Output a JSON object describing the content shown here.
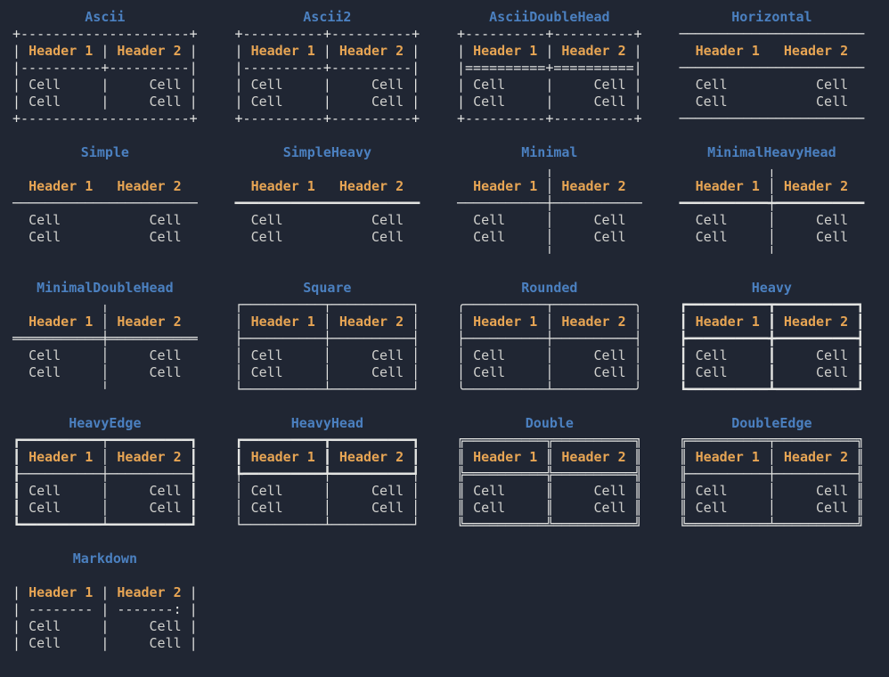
{
  "colors": {
    "background": "#202633",
    "title": "#4b80c0",
    "header": "#e7a554",
    "cell": "#d0d0cd",
    "border": "#e3e4e2"
  },
  "highlight": {
    "headers": [
      "Header 1",
      "Header 2"
    ],
    "cells": [
      "Cell"
    ]
  },
  "tables": [
    {
      "title": "Ascii",
      "lines": [
        "+---------------------+",
        "| Header 1 | Header 2 |",
        "|----------+----------|",
        "| Cell     |     Cell |",
        "| Cell     |     Cell |",
        "+---------------------+"
      ]
    },
    {
      "title": "Ascii2",
      "lines": [
        "+----------+----------+",
        "| Header 1 | Header 2 |",
        "|----------+----------|",
        "| Cell     |     Cell |",
        "| Cell     |     Cell |",
        "+----------+----------+"
      ]
    },
    {
      "title": "AsciiDoubleHead",
      "lines": [
        "+----------+----------+",
        "| Header 1 | Header 2 |",
        "|==========+==========|",
        "| Cell     |     Cell |",
        "| Cell     |     Cell |",
        "+----------+----------+"
      ]
    },
    {
      "title": "Horizontal",
      "lines": [
        "───────────────────────",
        "  Header 1   Header 2  ",
        "───────────────────────",
        "  Cell           Cell  ",
        "  Cell           Cell  ",
        "───────────────────────"
      ]
    },
    {
      "title": "Simple",
      "lines": [
        "",
        "  Header 1   Header 2  ",
        "───────────────────────",
        "  Cell           Cell  ",
        "  Cell           Cell  ",
        ""
      ]
    },
    {
      "title": "SimpleHeavy",
      "lines": [
        "",
        "  Header 1   Header 2  ",
        "━━━━━━━━━━━━━━━━━━━━━━━",
        "  Cell           Cell  ",
        "  Cell           Cell  ",
        ""
      ]
    },
    {
      "title": "Minimal",
      "lines": [
        "           ╷           ",
        "  Header 1 │ Header 2  ",
        "───────────┼───────────",
        "  Cell     │     Cell  ",
        "  Cell     │     Cell  ",
        "           ╵           "
      ]
    },
    {
      "title": "MinimalHeavyHead",
      "lines": [
        "           ╷           ",
        "  Header 1 │ Header 2  ",
        "━━━━━━━━━━━┿━━━━━━━━━━━",
        "  Cell     │     Cell  ",
        "  Cell     │     Cell  ",
        "           ╵           "
      ]
    },
    {
      "title": "MinimalDoubleHead",
      "lines": [
        "           ╷           ",
        "  Header 1 │ Header 2  ",
        "═══════════╪═══════════",
        "  Cell     │     Cell  ",
        "  Cell     │     Cell  ",
        "           ╵           "
      ]
    },
    {
      "title": "Square",
      "lines": [
        "┌──────────┬──────────┐",
        "│ Header 1 │ Header 2 │",
        "├──────────┼──────────┤",
        "│ Cell     │     Cell │",
        "│ Cell     │     Cell │",
        "└──────────┴──────────┘"
      ]
    },
    {
      "title": "Rounded",
      "lines": [
        "╭──────────┬──────────╮",
        "│ Header 1 │ Header 2 │",
        "├──────────┼──────────┤",
        "│ Cell     │     Cell │",
        "│ Cell     │     Cell │",
        "╰──────────┴──────────╯"
      ]
    },
    {
      "title": "Heavy",
      "lines": [
        "┏━━━━━━━━━━┳━━━━━━━━━━┓",
        "┃ Header 1 ┃ Header 2 ┃",
        "┣━━━━━━━━━━╋━━━━━━━━━━┫",
        "┃ Cell     ┃     Cell ┃",
        "┃ Cell     ┃     Cell ┃",
        "┗━━━━━━━━━━┻━━━━━━━━━━┛"
      ]
    },
    {
      "title": "HeavyEdge",
      "lines": [
        "┏━━━━━━━━━━┯━━━━━━━━━━┓",
        "┃ Header 1 │ Header 2 ┃",
        "┠──────────┼──────────┨",
        "┃ Cell     │     Cell ┃",
        "┃ Cell     │     Cell ┃",
        "┗━━━━━━━━━━┷━━━━━━━━━━┛"
      ]
    },
    {
      "title": "HeavyHead",
      "lines": [
        "┏━━━━━━━━━━┳━━━━━━━━━━┓",
        "┃ Header 1 ┃ Header 2 ┃",
        "┡━━━━━━━━━━╇━━━━━━━━━━┩",
        "│ Cell     │     Cell │",
        "│ Cell     │     Cell │",
        "└──────────┴──────────┘"
      ]
    },
    {
      "title": "Double",
      "lines": [
        "╔══════════╦══════════╗",
        "║ Header 1 ║ Header 2 ║",
        "╠══════════╬══════════╣",
        "║ Cell     ║     Cell ║",
        "║ Cell     ║     Cell ║",
        "╚══════════╩══════════╝"
      ]
    },
    {
      "title": "DoubleEdge",
      "lines": [
        "╔══════════╤══════════╗",
        "║ Header 1 │ Header 2 ║",
        "╟──────────┼──────────╢",
        "║ Cell     │     Cell ║",
        "║ Cell     │     Cell ║",
        "╚══════════╧══════════╝"
      ]
    },
    {
      "title": "Markdown",
      "lines": [
        "",
        "| Header 1 | Header 2 |",
        "| -------- | -------: |",
        "| Cell     |     Cell |",
        "| Cell     |     Cell |",
        ""
      ]
    }
  ]
}
